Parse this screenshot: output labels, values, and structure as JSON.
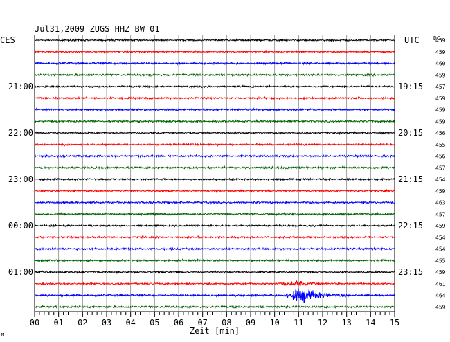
{
  "chart_data": {
    "type": "line",
    "title": "Jul31,2009   ZUGS HHZ BW 01",
    "left_header": "CES",
    "right_header": "UTC",
    "dc_header": "DC",
    "xlabel": "Zeit [min]",
    "x_ticks": [
      "00",
      "01",
      "02",
      "03",
      "04",
      "05",
      "06",
      "07",
      "08",
      "09",
      "10",
      "11",
      "12",
      "13",
      "14",
      "15"
    ],
    "xlim": [
      0,
      15
    ],
    "traces": [
      {
        "color": "#000000",
        "dc": "459",
        "left": "",
        "right": "",
        "amp": 1.0
      },
      {
        "color": "#ff0000",
        "dc": "459",
        "left": "",
        "right": "",
        "amp": 1.0
      },
      {
        "color": "#0000ff",
        "dc": "460",
        "left": "",
        "right": "",
        "amp": 1.1
      },
      {
        "color": "#006400",
        "dc": "459",
        "left": "",
        "right": "",
        "amp": 1.1
      },
      {
        "color": "#000000",
        "dc": "457",
        "left": "21:00",
        "right": "19:15",
        "amp": 1.0
      },
      {
        "color": "#ff0000",
        "dc": "459",
        "left": "",
        "right": "",
        "amp": 1.0
      },
      {
        "color": "#0000ff",
        "dc": "459",
        "left": "",
        "right": "",
        "amp": 1.1
      },
      {
        "color": "#006400",
        "dc": "459",
        "left": "",
        "right": "",
        "amp": 1.1
      },
      {
        "color": "#000000",
        "dc": "456",
        "left": "22:00",
        "right": "20:15",
        "amp": 1.0
      },
      {
        "color": "#ff0000",
        "dc": "455",
        "left": "",
        "right": "",
        "amp": 1.0
      },
      {
        "color": "#0000ff",
        "dc": "456",
        "left": "",
        "right": "",
        "amp": 1.1
      },
      {
        "color": "#006400",
        "dc": "457",
        "left": "",
        "right": "",
        "amp": 1.1
      },
      {
        "color": "#000000",
        "dc": "454",
        "left": "23:00",
        "right": "21:15",
        "amp": 1.0
      },
      {
        "color": "#ff0000",
        "dc": "459",
        "left": "",
        "right": "",
        "amp": 1.0
      },
      {
        "color": "#0000ff",
        "dc": "463",
        "left": "",
        "right": "",
        "amp": 1.1
      },
      {
        "color": "#006400",
        "dc": "457",
        "left": "",
        "right": "",
        "amp": 1.1
      },
      {
        "color": "#000000",
        "dc": "459",
        "left": "00:00",
        "right": "22:15",
        "amp": 1.0
      },
      {
        "color": "#ff0000",
        "dc": "454",
        "left": "",
        "right": "",
        "amp": 1.0
      },
      {
        "color": "#0000ff",
        "dc": "454",
        "left": "",
        "right": "",
        "amp": 1.1
      },
      {
        "color": "#006400",
        "dc": "455",
        "left": "",
        "right": "",
        "amp": 1.1
      },
      {
        "color": "#000000",
        "dc": "459",
        "left": "01:00",
        "right": "23:15",
        "amp": 1.0
      },
      {
        "color": "#ff0000",
        "dc": "461",
        "left": "",
        "right": "",
        "amp": 1.0,
        "event": {
          "start": 9.9,
          "peak": 11.0,
          "end": 12.0,
          "peak_amp": 3.5
        }
      },
      {
        "color": "#0000ff",
        "dc": "464",
        "left": "",
        "right": "",
        "amp": 1.1,
        "event": {
          "start": 10.3,
          "peak": 11.0,
          "end": 13.0,
          "peak_amp": 11
        }
      },
      {
        "color": "#006400",
        "dc": "459",
        "left": "",
        "right": "",
        "amp": 1.1
      }
    ],
    "grid": true,
    "corner_mark": "M"
  }
}
